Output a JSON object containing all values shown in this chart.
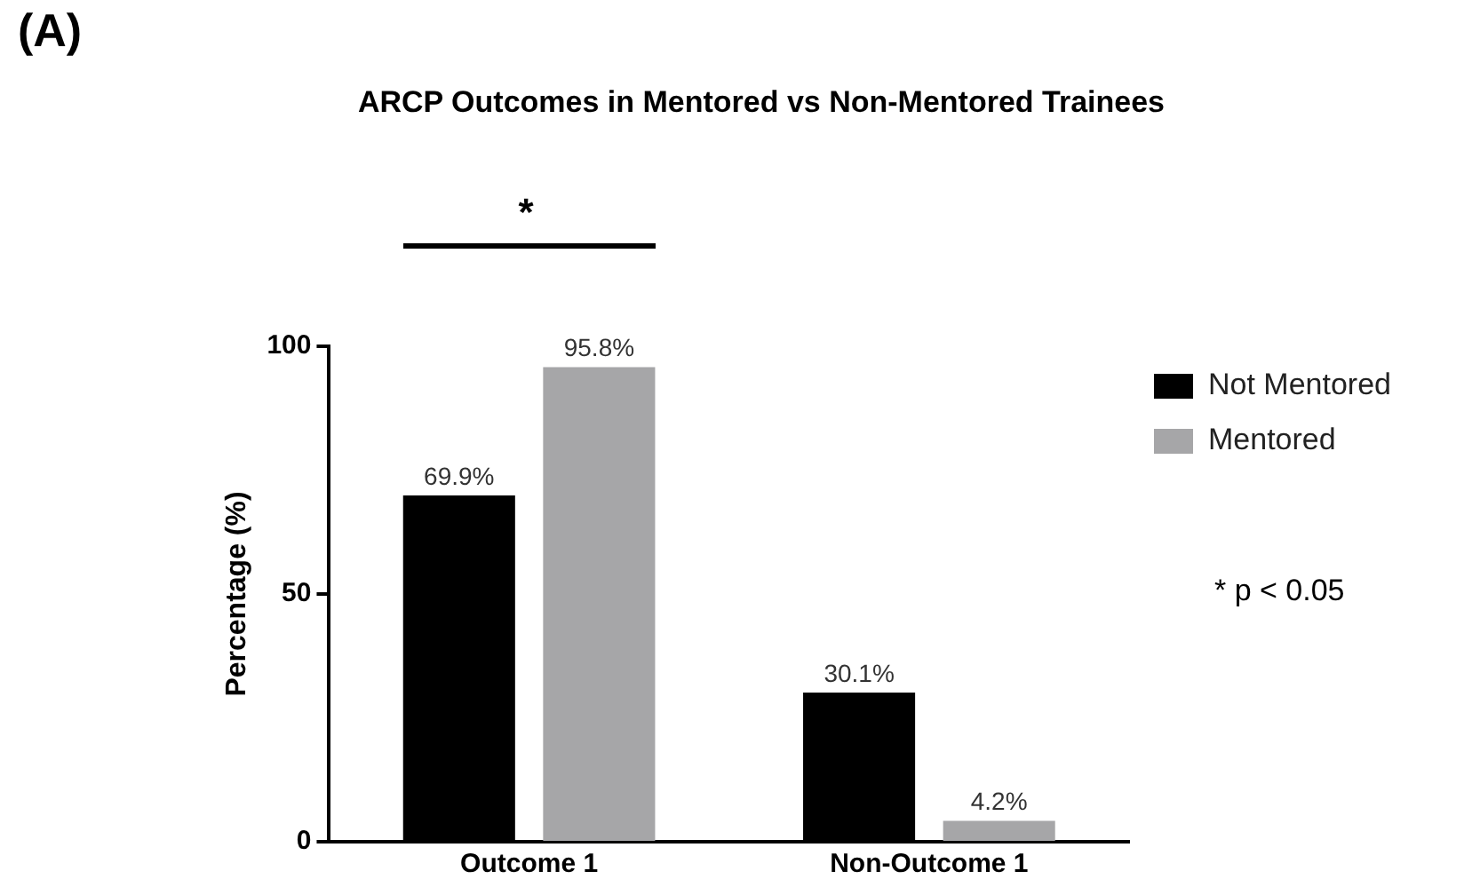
{
  "chart_data": {
    "type": "bar",
    "title": "ARCP Outcomes in Mentored vs Non-Mentored Trainees",
    "ylabel": "Percentage (%)",
    "categories": [
      "Outcome 1",
      "Non-Outcome 1"
    ],
    "series": [
      {
        "name": "Not Mentored",
        "color": "#000000",
        "values": [
          69.9,
          30.1
        ],
        "value_labels": [
          "69.9%",
          "30.1%"
        ]
      },
      {
        "name": "Mentored",
        "color": "#a6a6a8",
        "values": [
          95.8,
          4.2
        ],
        "value_labels": [
          "95.8%",
          "4.2%"
        ]
      }
    ],
    "ylim": [
      0,
      100
    ],
    "yticks": [
      0,
      50,
      100
    ],
    "grid": false,
    "legend": "top right",
    "annotations": [
      "(A)",
      "*",
      "* p < 0.05"
    ]
  }
}
